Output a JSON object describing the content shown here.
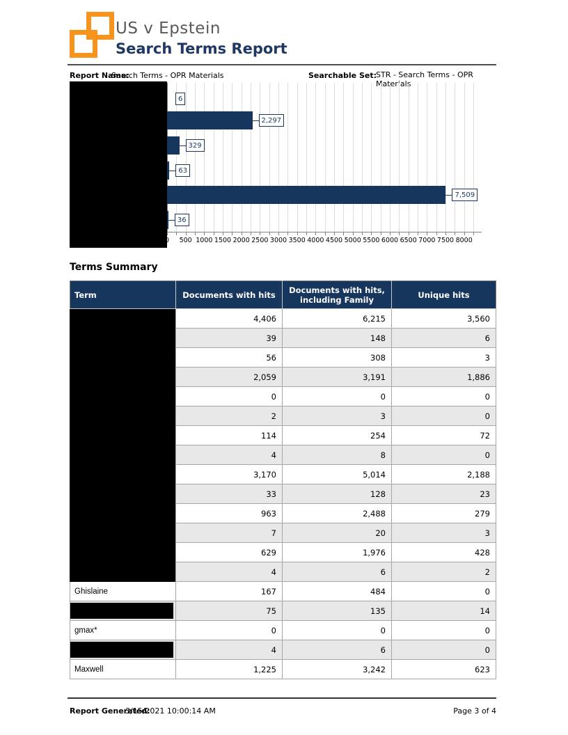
{
  "header": {
    "title": "US v Epstein",
    "subtitle": "Search Terms Report"
  },
  "report_info": {
    "report_name_label": "Report Name:",
    "report_name_value": "Search Terms - OPR Materials",
    "searchable_set_label": "Searchable Set:",
    "searchable_set_value": "STR - Search Terms - OPR Materials"
  },
  "chart_data": {
    "type": "bar",
    "orientation": "horizontal",
    "title": "",
    "xlabel": "",
    "ylabel": "",
    "xlim": [
      0,
      8400
    ],
    "x_major_tick_step": 500,
    "x_minor_tick_step": 250,
    "x_tick_labels": [
      "0",
      "500",
      "1000",
      "1500",
      "2000",
      "2500",
      "3000",
      "3500",
      "4000",
      "4500",
      "5000",
      "5500",
      "6000",
      "6500",
      "7000",
      "7500",
      "8000"
    ],
    "categories_hidden_by_redaction": true,
    "categories": [
      "",
      "",
      "",
      "",
      "",
      ""
    ],
    "values": [
      6,
      2297,
      329,
      63,
      7509,
      36
    ],
    "value_labels": [
      "6",
      "2,297",
      "329",
      "63",
      "7,509",
      "36"
    ],
    "first_label_partially_clipped": true,
    "bar_color": "#17365D",
    "grid": true,
    "legend": false
  },
  "terms_summary": {
    "title": "Terms Summary",
    "columns": [
      "Term",
      "Documents with hits",
      "Documents with hits, including Family",
      "Unique hits"
    ],
    "rows": [
      {
        "term": "",
        "redaction": "block",
        "docs_with_hits": "4,406",
        "docs_with_hits_family": "6,215",
        "unique_hits": "3,560"
      },
      {
        "term": "",
        "redaction": "block",
        "docs_with_hits": "39",
        "docs_with_hits_family": "148",
        "unique_hits": "6"
      },
      {
        "term": "",
        "redaction": "block",
        "docs_with_hits": "56",
        "docs_with_hits_family": "308",
        "unique_hits": "3"
      },
      {
        "term": "",
        "redaction": "block",
        "docs_with_hits": "2,059",
        "docs_with_hits_family": "3,191",
        "unique_hits": "1,886"
      },
      {
        "term": "",
        "redaction": "block",
        "docs_with_hits": "0",
        "docs_with_hits_family": "0",
        "unique_hits": "0"
      },
      {
        "term": "",
        "redaction": "block",
        "docs_with_hits": "2",
        "docs_with_hits_family": "3",
        "unique_hits": "0"
      },
      {
        "term": "",
        "redaction": "block",
        "docs_with_hits": "114",
        "docs_with_hits_family": "254",
        "unique_hits": "72"
      },
      {
        "term": "",
        "redaction": "block",
        "docs_with_hits": "4",
        "docs_with_hits_family": "8",
        "unique_hits": "0"
      },
      {
        "term": "",
        "redaction": "block",
        "docs_with_hits": "3,170",
        "docs_with_hits_family": "5,014",
        "unique_hits": "2,188"
      },
      {
        "term": "",
        "redaction": "block",
        "docs_with_hits": "33",
        "docs_with_hits_family": "128",
        "unique_hits": "23"
      },
      {
        "term": "",
        "redaction": "block",
        "docs_with_hits": "963",
        "docs_with_hits_family": "2,488",
        "unique_hits": "279"
      },
      {
        "term": "",
        "redaction": "block",
        "docs_with_hits": "7",
        "docs_with_hits_family": "20",
        "unique_hits": "3"
      },
      {
        "term": "",
        "redaction": "block",
        "docs_with_hits": "629",
        "docs_with_hits_family": "1,976",
        "unique_hits": "428"
      },
      {
        "term": "",
        "redaction": "block",
        "docs_with_hits": "4",
        "docs_with_hits_family": "6",
        "unique_hits": "2"
      },
      {
        "term": "Ghislaine",
        "redaction": null,
        "docs_with_hits": "167",
        "docs_with_hits_family": "484",
        "unique_hits": "0"
      },
      {
        "term": "",
        "redaction": "inline",
        "docs_with_hits": "75",
        "docs_with_hits_family": "135",
        "unique_hits": "14"
      },
      {
        "term": "gmax*",
        "redaction": null,
        "docs_with_hits": "0",
        "docs_with_hits_family": "0",
        "unique_hits": "0"
      },
      {
        "term": "",
        "redaction": "inline",
        "docs_with_hits": "4",
        "docs_with_hits_family": "6",
        "unique_hits": "0"
      },
      {
        "term": "Maxwell",
        "redaction": null,
        "docs_with_hits": "1,225",
        "docs_with_hits_family": "3,242",
        "unique_hits": "623"
      }
    ]
  },
  "footer": {
    "generated_label": "Report Generated:",
    "generated_value": "3/15/2021 10:00:14 AM",
    "page_label": "Page 3 of 4"
  },
  "colors": {
    "accent_orange": "#F7941E",
    "navy": "#17365D",
    "title_gray": "#595959",
    "stripe_gray": "#E8E8E8",
    "grid_gray": "#DCDCDC",
    "redaction_black": "#000000"
  }
}
